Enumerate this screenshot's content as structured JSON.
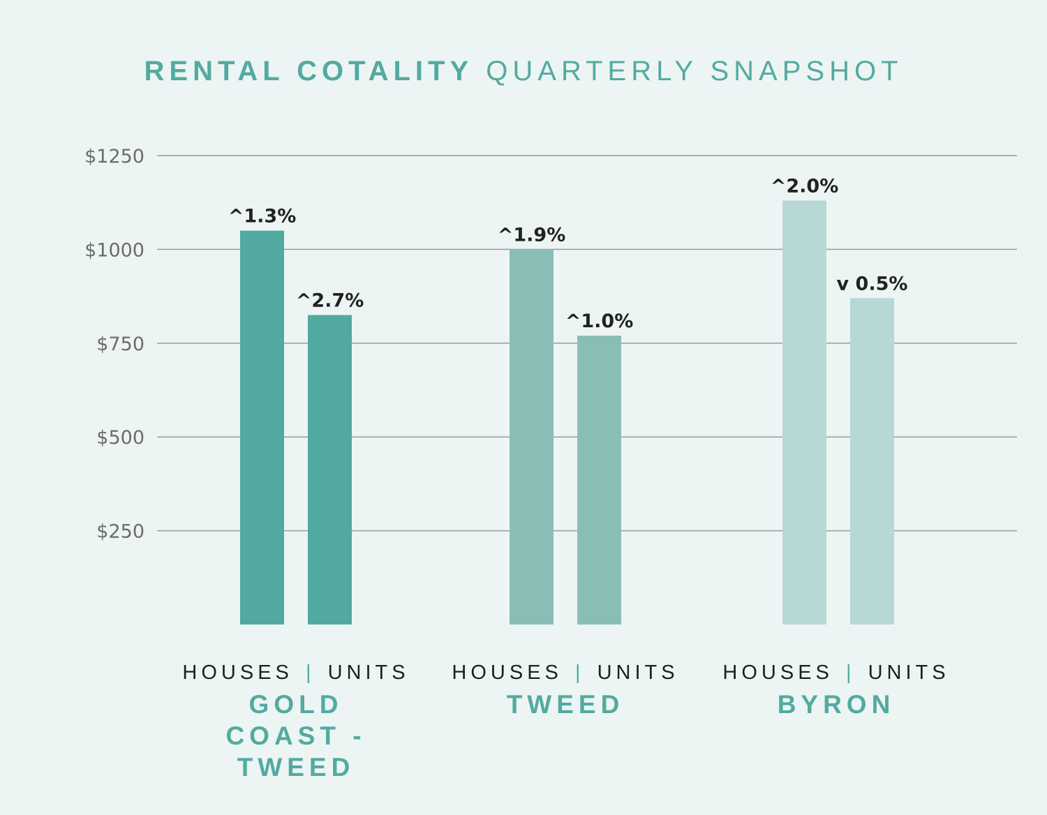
{
  "title": {
    "bold": "RENTAL COTALITY",
    "light": "QUARTERLY SNAPSHOT"
  },
  "colors": {
    "background": "#ecf5f3",
    "title": "#53aaa1",
    "gridline": "#9a9a9a",
    "gold_coast_tweed": "#52a9a0",
    "tweed": "#89beb7",
    "byron": "#b8d8d6",
    "data_label": "#222222",
    "tick_label": "#6b6b6b"
  },
  "chart_data": {
    "type": "bar",
    "title": "RENTAL COTALITY QUARTERLY SNAPSHOT",
    "ylim": [
      0,
      1250
    ],
    "yticks": [
      250,
      500,
      750,
      1000,
      1250
    ],
    "ytick_labels": [
      "$250",
      "$500",
      "$750",
      "$1000",
      "$1250"
    ],
    "grid": true,
    "groups": [
      {
        "region": "GOLD COAST - TWEED",
        "bar_types_label": {
          "left": "HOUSES",
          "separator": "|",
          "right": "UNITS"
        },
        "color": "#52a9a0",
        "bars": [
          {
            "type": "HOUSES",
            "value": 1050,
            "change": "^1.3%"
          },
          {
            "type": "UNITS",
            "value": 825,
            "change": "^2.7%"
          }
        ]
      },
      {
        "region": "TWEED",
        "bar_types_label": {
          "left": "HOUSES",
          "separator": "|",
          "right": "UNITS"
        },
        "color": "#89beb7",
        "bars": [
          {
            "type": "HOUSES",
            "value": 1000,
            "change": "^1.9%"
          },
          {
            "type": "UNITS",
            "value": 770,
            "change": "^1.0%"
          }
        ]
      },
      {
        "region": "BYRON",
        "bar_types_label": {
          "left": "HOUSES",
          "separator": "|",
          "right": "UNITS"
        },
        "color": "#b8d8d6",
        "bars": [
          {
            "type": "HOUSES",
            "value": 1130,
            "change": "^2.0%"
          },
          {
            "type": "UNITS",
            "value": 870,
            "change": "v 0.5%"
          }
        ]
      }
    ]
  }
}
